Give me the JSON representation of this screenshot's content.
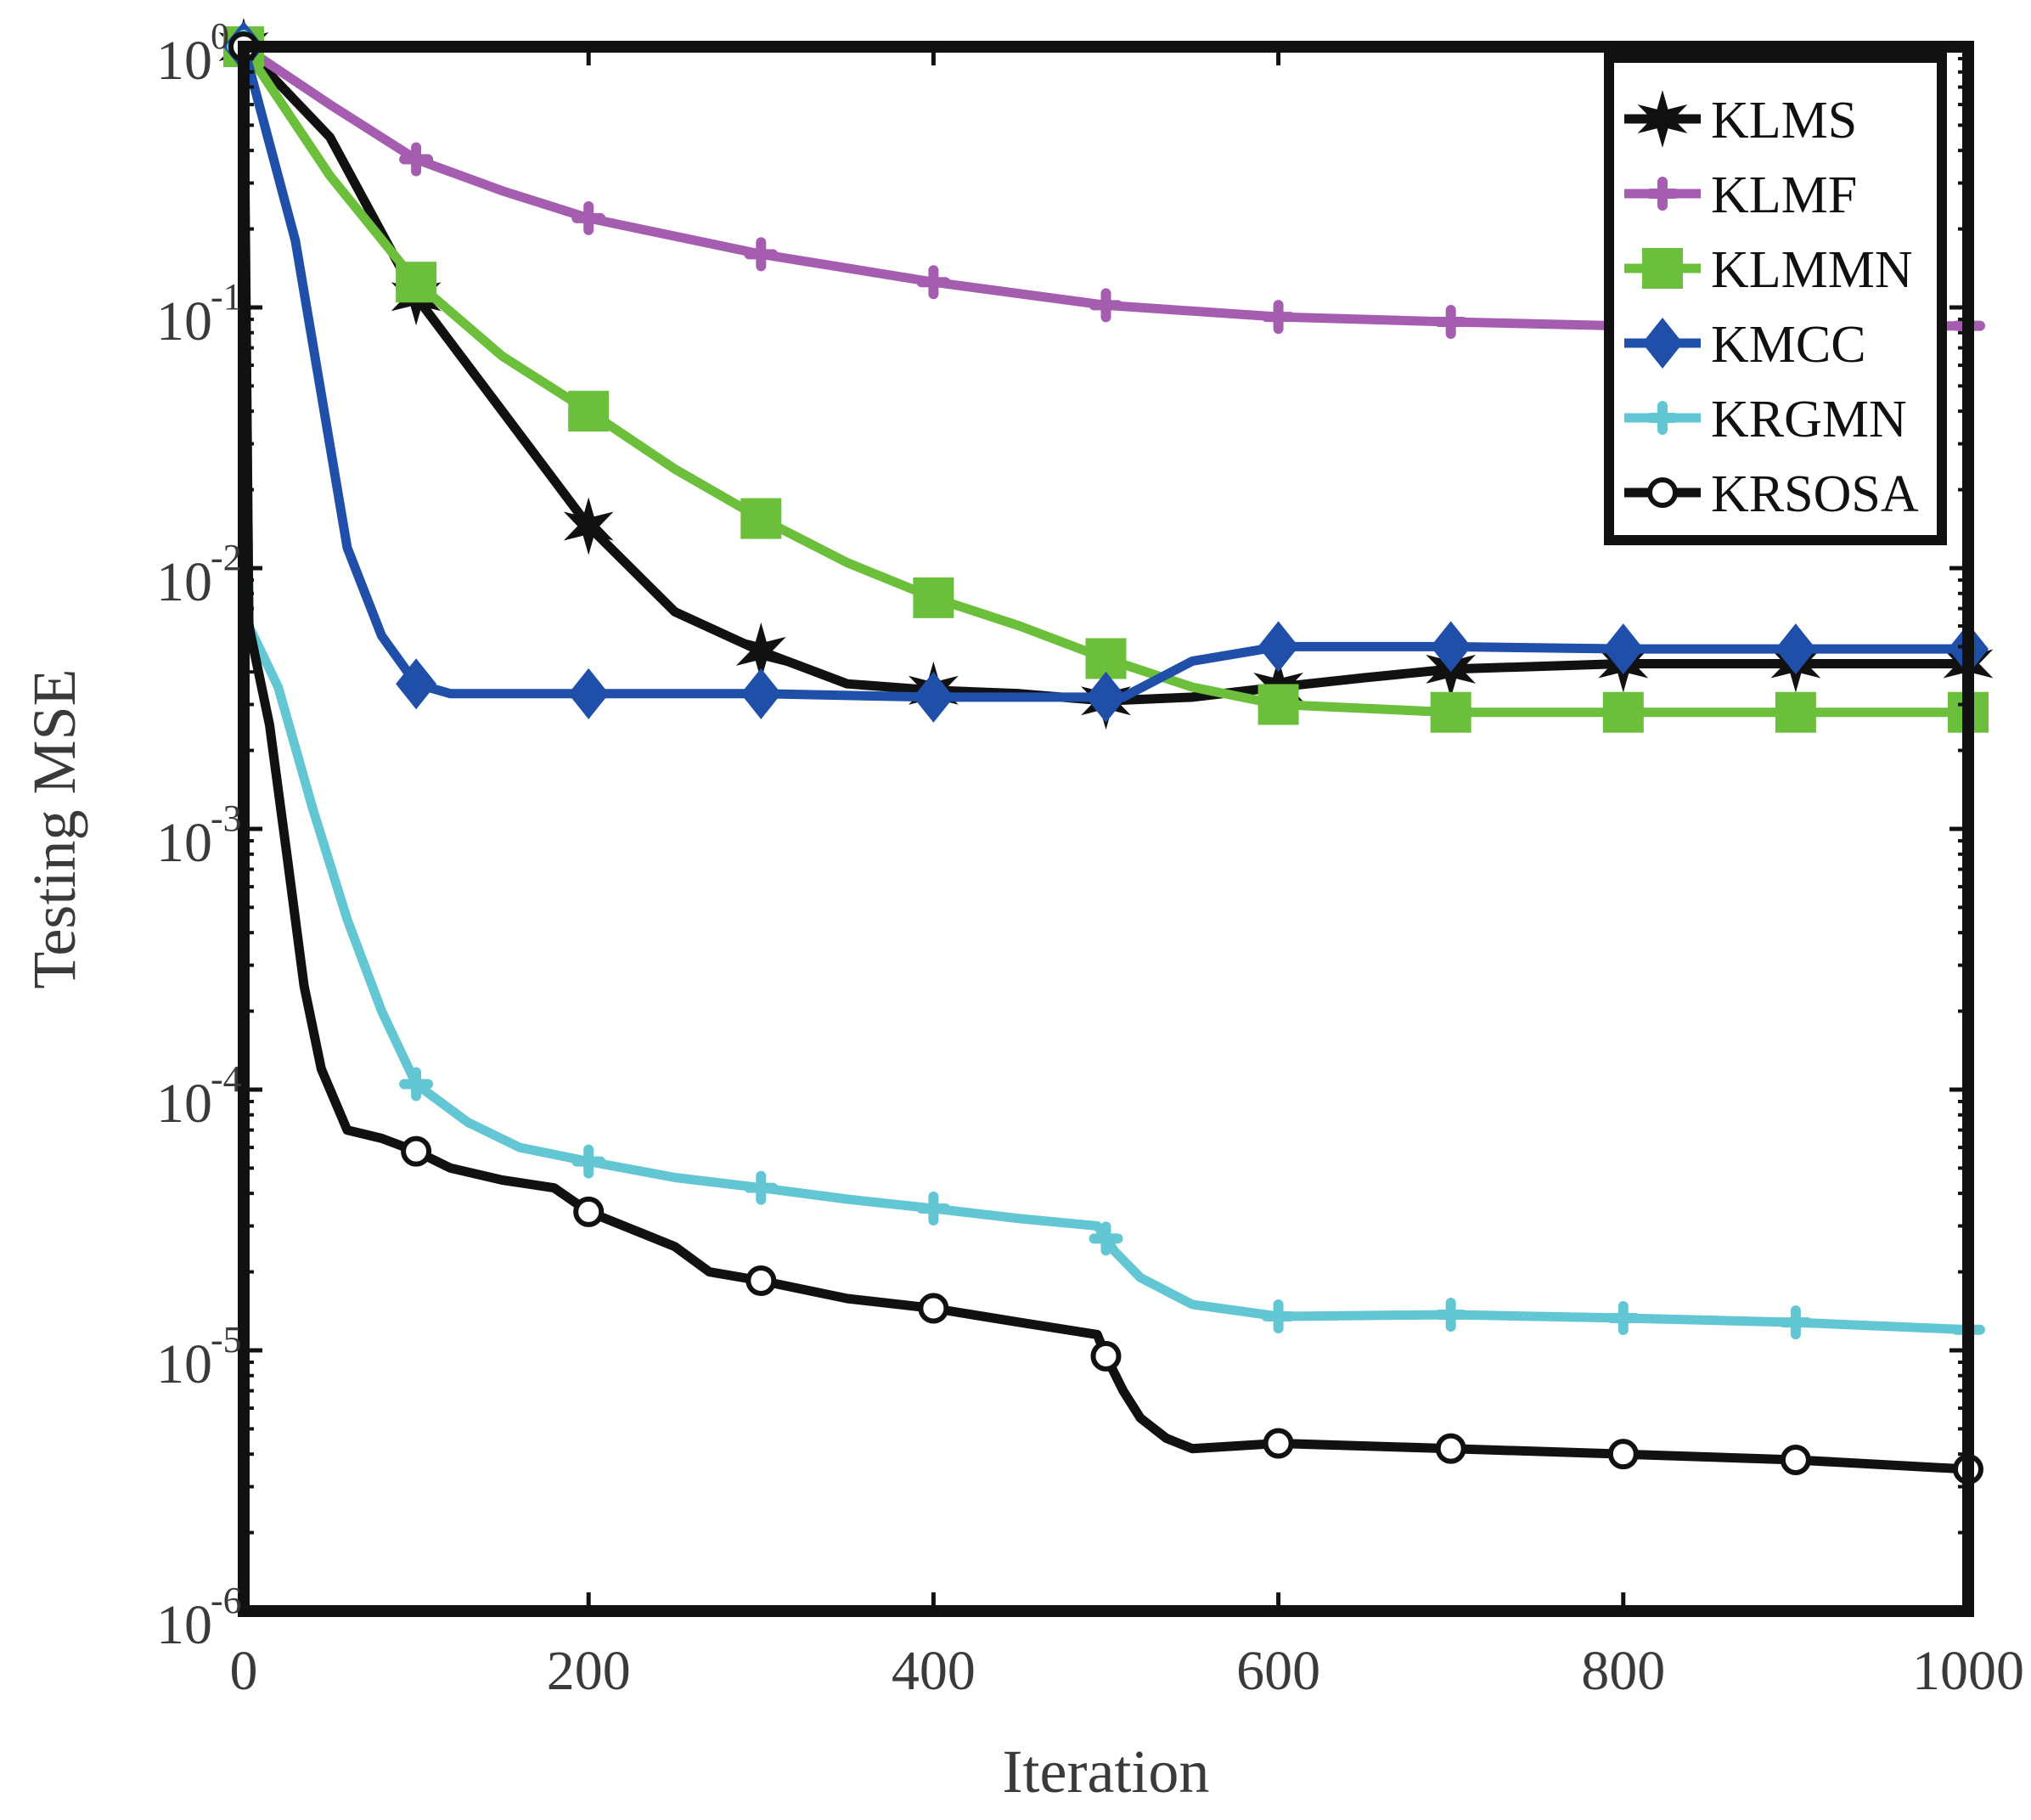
{
  "chart_data": {
    "type": "line",
    "title": "",
    "xlabel": "Iteration",
    "ylabel": "Testing MSE",
    "xlim": [
      0,
      1000
    ],
    "ylim_log10": [
      -6,
      0
    ],
    "yscale": "log",
    "grid": false,
    "legend_position": "top-right",
    "x_ticks": [
      "0",
      "200",
      "400",
      "600",
      "800",
      "1000"
    ],
    "y_ticks": [
      {
        "base": "10",
        "exp": "0"
      },
      {
        "base": "10",
        "exp": "-1"
      },
      {
        "base": "10",
        "exp": "-2"
      },
      {
        "base": "10",
        "exp": "-3"
      },
      {
        "base": "10",
        "exp": "-4"
      },
      {
        "base": "10",
        "exp": "-5"
      },
      {
        "base": "10",
        "exp": "-6"
      }
    ],
    "series": [
      {
        "name": "KLMS",
        "color": "#111111",
        "marker": "star",
        "points": [
          [
            0,
            1.0
          ],
          [
            50,
            0.45
          ],
          [
            100,
            0.11
          ],
          [
            150,
            0.04
          ],
          [
            200,
            0.0145
          ],
          [
            250,
            0.0068
          ],
          [
            300,
            0.0048
          ],
          [
            350,
            0.0036
          ],
          [
            400,
            0.0034
          ],
          [
            450,
            0.0033
          ],
          [
            500,
            0.0031
          ],
          [
            550,
            0.0032
          ],
          [
            600,
            0.0035
          ],
          [
            650,
            0.0038
          ],
          [
            700,
            0.0041
          ],
          [
            800,
            0.0043
          ],
          [
            900,
            0.0043
          ],
          [
            1000,
            0.0043
          ]
        ],
        "marker_x": [
          0,
          100,
          200,
          300,
          400,
          500,
          600,
          700,
          800,
          900,
          1000
        ]
      },
      {
        "name": "KLMF",
        "color": "#a55db0",
        "marker": "plus",
        "points": [
          [
            0,
            1.0
          ],
          [
            50,
            0.6
          ],
          [
            100,
            0.37
          ],
          [
            150,
            0.28
          ],
          [
            200,
            0.22
          ],
          [
            300,
            0.16
          ],
          [
            400,
            0.125
          ],
          [
            500,
            0.102
          ],
          [
            600,
            0.092
          ],
          [
            700,
            0.088
          ],
          [
            800,
            0.085
          ],
          [
            900,
            0.085
          ],
          [
            1000,
            0.085
          ]
        ],
        "marker_x": [
          0,
          100,
          200,
          300,
          400,
          500,
          600,
          700,
          800,
          900,
          1000
        ]
      },
      {
        "name": "KLMMN",
        "color": "#6bbf3a",
        "marker": "square",
        "points": [
          [
            0,
            1.0
          ],
          [
            50,
            0.32
          ],
          [
            100,
            0.125
          ],
          [
            150,
            0.065
          ],
          [
            200,
            0.04
          ],
          [
            250,
            0.024
          ],
          [
            300,
            0.0155
          ],
          [
            350,
            0.0105
          ],
          [
            400,
            0.0077
          ],
          [
            450,
            0.006
          ],
          [
            500,
            0.0045
          ],
          [
            550,
            0.0035
          ],
          [
            600,
            0.003
          ],
          [
            700,
            0.0028
          ],
          [
            800,
            0.0028
          ],
          [
            900,
            0.0028
          ],
          [
            1000,
            0.0028
          ]
        ],
        "marker_x": [
          0,
          100,
          200,
          300,
          400,
          500,
          600,
          700,
          800,
          900,
          1000
        ]
      },
      {
        "name": "KMCC",
        "color": "#1f4fa8",
        "marker": "diamond",
        "points": [
          [
            0,
            1.0
          ],
          [
            30,
            0.18
          ],
          [
            60,
            0.012
          ],
          [
            80,
            0.0055
          ],
          [
            100,
            0.0036
          ],
          [
            120,
            0.0033
          ],
          [
            200,
            0.0033
          ],
          [
            300,
            0.0033
          ],
          [
            400,
            0.0032
          ],
          [
            500,
            0.0032
          ],
          [
            510,
            0.0032
          ],
          [
            550,
            0.0044
          ],
          [
            600,
            0.005
          ],
          [
            700,
            0.005
          ],
          [
            800,
            0.0049
          ],
          [
            900,
            0.0049
          ],
          [
            1000,
            0.0049
          ]
        ],
        "marker_x": [
          0,
          100,
          200,
          300,
          400,
          500,
          600,
          700,
          800,
          900,
          1000
        ]
      },
      {
        "name": "KRGMN",
        "color": "#63c6d3",
        "marker": "plus",
        "points": [
          [
            0,
            1.0
          ],
          [
            3,
            0.006
          ],
          [
            20,
            0.0035
          ],
          [
            40,
            0.0012
          ],
          [
            60,
            0.00045
          ],
          [
            80,
            0.0002
          ],
          [
            100,
            0.000105
          ],
          [
            130,
            7.5e-05
          ],
          [
            160,
            6e-05
          ],
          [
            200,
            5.3e-05
          ],
          [
            250,
            4.6e-05
          ],
          [
            300,
            4.2e-05
          ],
          [
            350,
            3.8e-05
          ],
          [
            400,
            3.5e-05
          ],
          [
            450,
            3.2e-05
          ],
          [
            495,
            3e-05
          ],
          [
            505,
            2.4e-05
          ],
          [
            520,
            1.9e-05
          ],
          [
            550,
            1.5e-05
          ],
          [
            600,
            1.35e-05
          ],
          [
            700,
            1.37e-05
          ],
          [
            800,
            1.33e-05
          ],
          [
            900,
            1.28e-05
          ],
          [
            1000,
            1.2e-05
          ]
        ],
        "marker_x": [
          0,
          100,
          200,
          300,
          400,
          500,
          600,
          700,
          800,
          900,
          1000
        ]
      },
      {
        "name": "KRSOSA",
        "color": "#111111",
        "marker": "circle",
        "points": [
          [
            0,
            1.0
          ],
          [
            3,
            0.006
          ],
          [
            15,
            0.0025
          ],
          [
            25,
            0.0008
          ],
          [
            35,
            0.00025
          ],
          [
            45,
            0.00012
          ],
          [
            60,
            7e-05
          ],
          [
            80,
            6.5e-05
          ],
          [
            100,
            5.8e-05
          ],
          [
            120,
            5e-05
          ],
          [
            150,
            4.5e-05
          ],
          [
            180,
            4.2e-05
          ],
          [
            200,
            3.4e-05
          ],
          [
            250,
            2.5e-05
          ],
          [
            270,
            2e-05
          ],
          [
            300,
            1.85e-05
          ],
          [
            350,
            1.58e-05
          ],
          [
            400,
            1.45e-05
          ],
          [
            450,
            1.28e-05
          ],
          [
            495,
            1.15e-05
          ],
          [
            500,
            9.5e-06
          ],
          [
            510,
            7e-06
          ],
          [
            520,
            5.5e-06
          ],
          [
            535,
            4.6e-06
          ],
          [
            550,
            4.2e-06
          ],
          [
            600,
            4.4e-06
          ],
          [
            700,
            4.2e-06
          ],
          [
            800,
            4e-06
          ],
          [
            900,
            3.8e-06
          ],
          [
            1000,
            3.5e-06
          ]
        ],
        "marker_x": [
          0,
          100,
          200,
          300,
          400,
          500,
          600,
          700,
          800,
          900,
          1000
        ]
      }
    ]
  }
}
